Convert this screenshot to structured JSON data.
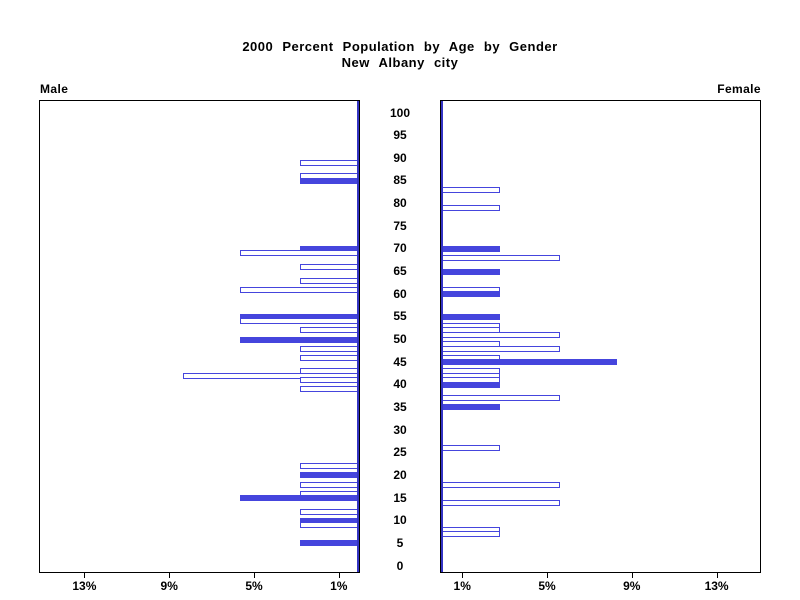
{
  "title": {
    "line1": "2000 Percent Population by Age by Gender",
    "line2": "New Albany city"
  },
  "left_header": "Male",
  "right_header": "Female",
  "colors": {
    "bar_blue": "#4545dd",
    "zero_axis_blue": "#3434c4",
    "frame": "#000000",
    "background": "#ffffff",
    "text": "#000000"
  },
  "chart_data": {
    "type": "bar",
    "subtype": "population-pyramid",
    "orientation": "horizontal, male bars grow leftward, female bars grow rightward",
    "title": "2000 Percent Population by Age by Gender — New Albany city",
    "unit": "percent of population",
    "filled_meaning": "solid bars mark ages at multiples of 5; other ages are hollow outlines",
    "grid": false,
    "legend": false,
    "age_axis": {
      "min": 0,
      "max": 100,
      "tick_step": 5,
      "labels": [
        "0",
        "5",
        "10",
        "15",
        "20",
        "25",
        "30",
        "35",
        "40",
        "45",
        "50",
        "55",
        "60",
        "65",
        "70",
        "75",
        "80",
        "85",
        "90",
        "95",
        "100"
      ]
    },
    "pct_axis": {
      "min": 0,
      "max": 15,
      "ticks": [
        1,
        5,
        9,
        13
      ],
      "tick_labels": [
        "1%",
        "5%",
        "9%",
        "13%"
      ]
    },
    "series": [
      {
        "name": "Male",
        "side": "left",
        "points": [
          {
            "age": 89,
            "pct": 2.8,
            "filled": false
          },
          {
            "age": 86,
            "pct": 2.8,
            "filled": false
          },
          {
            "age": 85,
            "pct": 2.8,
            "filled": true
          },
          {
            "age": 70,
            "pct": 2.8,
            "filled": true
          },
          {
            "age": 69,
            "pct": 5.6,
            "filled": false
          },
          {
            "age": 66,
            "pct": 2.8,
            "filled": false
          },
          {
            "age": 63,
            "pct": 2.8,
            "filled": false
          },
          {
            "age": 61,
            "pct": 5.6,
            "filled": false
          },
          {
            "age": 55,
            "pct": 5.6,
            "filled": true
          },
          {
            "age": 54,
            "pct": 5.6,
            "filled": false
          },
          {
            "age": 52,
            "pct": 2.8,
            "filled": false
          },
          {
            "age": 50,
            "pct": 5.6,
            "filled": true
          },
          {
            "age": 48,
            "pct": 2.8,
            "filled": false
          },
          {
            "age": 46,
            "pct": 2.8,
            "filled": false
          },
          {
            "age": 43,
            "pct": 2.8,
            "filled": false
          },
          {
            "age": 42,
            "pct": 8.3,
            "filled": false
          },
          {
            "age": 41,
            "pct": 2.8,
            "filled": false
          },
          {
            "age": 39,
            "pct": 2.8,
            "filled": false
          },
          {
            "age": 22,
            "pct": 2.8,
            "filled": false
          },
          {
            "age": 20,
            "pct": 2.8,
            "filled": true
          },
          {
            "age": 18,
            "pct": 2.8,
            "filled": false
          },
          {
            "age": 16,
            "pct": 2.8,
            "filled": false
          },
          {
            "age": 15,
            "pct": 5.6,
            "filled": true
          },
          {
            "age": 12,
            "pct": 2.8,
            "filled": false
          },
          {
            "age": 10,
            "pct": 2.8,
            "filled": true
          },
          {
            "age": 9,
            "pct": 2.8,
            "filled": false
          },
          {
            "age": 5,
            "pct": 2.8,
            "filled": true
          }
        ]
      },
      {
        "name": "Female",
        "side": "right",
        "points": [
          {
            "age": 83,
            "pct": 2.8,
            "filled": false
          },
          {
            "age": 79,
            "pct": 2.8,
            "filled": false
          },
          {
            "age": 70,
            "pct": 2.8,
            "filled": true
          },
          {
            "age": 68,
            "pct": 5.6,
            "filled": false
          },
          {
            "age": 65,
            "pct": 2.8,
            "filled": true
          },
          {
            "age": 61,
            "pct": 2.8,
            "filled": false
          },
          {
            "age": 60,
            "pct": 2.8,
            "filled": true
          },
          {
            "age": 55,
            "pct": 2.8,
            "filled": true
          },
          {
            "age": 53,
            "pct": 2.8,
            "filled": false
          },
          {
            "age": 52,
            "pct": 2.8,
            "filled": false
          },
          {
            "age": 51,
            "pct": 5.6,
            "filled": false
          },
          {
            "age": 49,
            "pct": 2.8,
            "filled": false
          },
          {
            "age": 48,
            "pct": 5.6,
            "filled": false
          },
          {
            "age": 46,
            "pct": 2.8,
            "filled": false
          },
          {
            "age": 45,
            "pct": 8.3,
            "filled": true
          },
          {
            "age": 43,
            "pct": 2.8,
            "filled": false
          },
          {
            "age": 42,
            "pct": 2.8,
            "filled": false
          },
          {
            "age": 41,
            "pct": 2.8,
            "filled": false
          },
          {
            "age": 40,
            "pct": 2.8,
            "filled": true
          },
          {
            "age": 37,
            "pct": 5.6,
            "filled": false
          },
          {
            "age": 35,
            "pct": 2.8,
            "filled": true
          },
          {
            "age": 26,
            "pct": 2.8,
            "filled": false
          },
          {
            "age": 18,
            "pct": 5.6,
            "filled": false
          },
          {
            "age": 14,
            "pct": 5.6,
            "filled": false
          },
          {
            "age": 8,
            "pct": 2.8,
            "filled": false
          },
          {
            "age": 7,
            "pct": 2.8,
            "filled": false
          }
        ]
      }
    ]
  }
}
